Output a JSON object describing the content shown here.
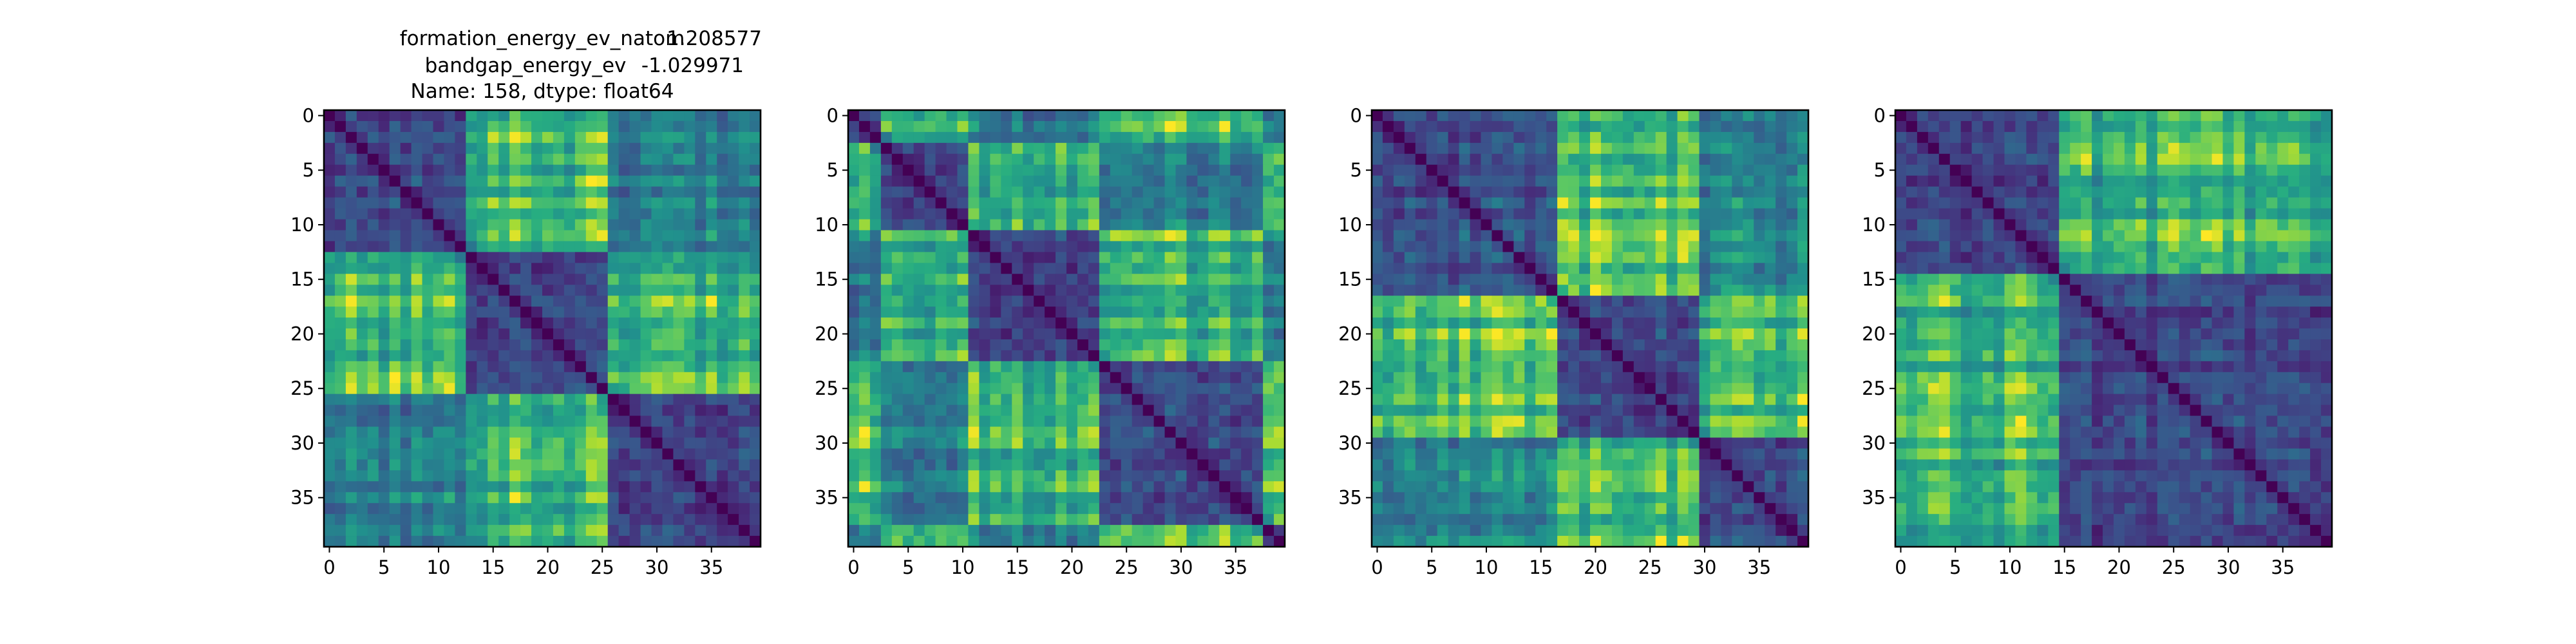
{
  "title": {
    "line1_name": "formation_energy_ev_natom",
    "line1_value": "1.208577",
    "line2_name": "bandgap_energy_ev",
    "line2_value": "-1.029971",
    "line3": "Name: 158, dtype: float64"
  },
  "chart_data": [
    {
      "type": "heatmap",
      "n": 40,
      "colormap": "viridis",
      "blocks": [
        [
          0,
          12
        ],
        [
          13,
          25
        ],
        [
          26,
          39
        ]
      ],
      "xticks": [
        0,
        5,
        10,
        15,
        20,
        25,
        30,
        35
      ],
      "yticks": [
        0,
        5,
        10,
        15,
        20,
        25,
        30,
        35
      ],
      "xtick_labels": [
        "0",
        "5",
        "10",
        "15",
        "20",
        "25",
        "30",
        "35"
      ],
      "ytick_labels": [
        "0",
        "5",
        "10",
        "15",
        "20",
        "25",
        "30",
        "35"
      ]
    },
    {
      "type": "heatmap",
      "n": 40,
      "colormap": "viridis",
      "blocks": [
        [
          0,
          2
        ],
        [
          3,
          10
        ],
        [
          11,
          22
        ],
        [
          23,
          37
        ],
        [
          38,
          39
        ]
      ],
      "xticks": [
        0,
        5,
        10,
        15,
        20,
        25,
        30,
        35
      ],
      "yticks": [
        0,
        5,
        10,
        15,
        20,
        25,
        30,
        35
      ],
      "xtick_labels": [
        "0",
        "5",
        "10",
        "15",
        "20",
        "25",
        "30",
        "35"
      ],
      "ytick_labels": [
        "0",
        "5",
        "10",
        "15",
        "20",
        "25",
        "30",
        "35"
      ]
    },
    {
      "type": "heatmap",
      "n": 40,
      "colormap": "viridis",
      "blocks": [
        [
          0,
          16
        ],
        [
          17,
          29
        ],
        [
          30,
          39
        ]
      ],
      "xticks": [
        0,
        5,
        10,
        15,
        20,
        25,
        30,
        35
      ],
      "yticks": [
        0,
        5,
        10,
        15,
        20,
        25,
        30,
        35
      ],
      "xtick_labels": [
        "0",
        "5",
        "10",
        "15",
        "20",
        "25",
        "30",
        "35"
      ],
      "ytick_labels": [
        "0",
        "5",
        "10",
        "15",
        "20",
        "25",
        "30",
        "35"
      ]
    },
    {
      "type": "heatmap",
      "n": 40,
      "colormap": "viridis",
      "blocks": [
        [
          0,
          14
        ],
        [
          15,
          39
        ]
      ],
      "xticks": [
        0,
        5,
        10,
        15,
        20,
        25,
        30,
        35
      ],
      "yticks": [
        0,
        5,
        10,
        15,
        20,
        25,
        30,
        35
      ],
      "xtick_labels": [
        "0",
        "5",
        "10",
        "15",
        "20",
        "25",
        "30",
        "35"
      ],
      "ytick_labels": [
        "0",
        "5",
        "10",
        "15",
        "20",
        "25",
        "30",
        "35"
      ]
    }
  ]
}
